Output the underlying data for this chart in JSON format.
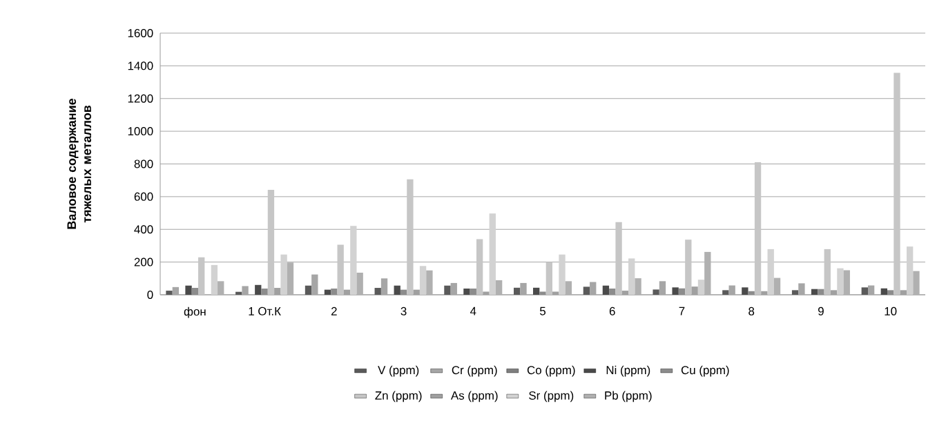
{
  "chart_data": {
    "type": "bar",
    "ylabel": "Валовое содержание тяжелых металлов",
    "categories": [
      "фон",
      "1 От.К",
      "2",
      "3",
      "4",
      "5",
      "6",
      "7",
      "8",
      "9",
      "10"
    ],
    "series": [
      {
        "name": "V (ppm)",
        "color": "#5a5a5a",
        "values": [
          25,
          18,
          56,
          42,
          56,
          43,
          49,
          32,
          28,
          28,
          45
        ]
      },
      {
        "name": "Cr (ppm)",
        "color": "#a6a6a6",
        "values": [
          47,
          53,
          124,
          100,
          72,
          72,
          78,
          83,
          57,
          70,
          57
        ]
      },
      {
        "name": "Co (ppm)",
        "color": "#7f7f7f",
        "values": [
          null,
          null,
          null,
          null,
          null,
          null,
          null,
          null,
          null,
          null,
          null
        ]
      },
      {
        "name": "Ni (ppm)",
        "color": "#4a4a4a",
        "values": [
          56,
          60,
          31,
          56,
          38,
          43,
          56,
          45,
          45,
          35,
          39
        ]
      },
      {
        "name": "Cu (ppm)",
        "color": "#8c8c8c",
        "values": [
          42,
          38,
          38,
          31,
          38,
          19,
          38,
          39,
          22,
          35,
          28
        ]
      },
      {
        "name": "Zn (ppm)",
        "color": "#c6c6c6",
        "values": [
          229,
          642,
          306,
          706,
          340,
          200,
          444,
          337,
          811,
          279,
          1357
        ]
      },
      {
        "name": "As (ppm)",
        "color": "#a0a0a0",
        "values": [
          null,
          42,
          31,
          31,
          19,
          19,
          25,
          50,
          22,
          28,
          28
        ]
      },
      {
        "name": "Sr (ppm)",
        "color": "#d2d2d2",
        "values": [
          182,
          246,
          421,
          176,
          497,
          246,
          222,
          92,
          279,
          162,
          295
        ]
      },
      {
        "name": "Pb (ppm)",
        "color": "#b0b0b0",
        "values": [
          83,
          197,
          135,
          149,
          89,
          83,
          101,
          262,
          103,
          150,
          145
        ]
      }
    ],
    "ylim": [
      0,
      1600
    ],
    "yticks": [
      0,
      200,
      400,
      600,
      800,
      1000,
      1200,
      1400,
      1600
    ],
    "grid": "y",
    "legend": "bottom"
  }
}
